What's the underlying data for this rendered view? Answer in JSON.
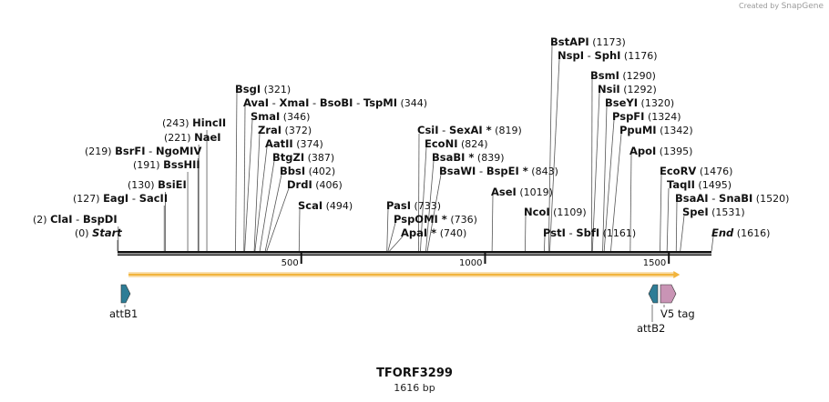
{
  "app": {
    "credit_prefix": "Created by",
    "credit_brand": "SnapGene"
  },
  "map": {
    "name": "TFORF3299",
    "length_label": "1616 bp",
    "length": 1616
  },
  "ticks": [
    {
      "value": 500,
      "label": "500"
    },
    {
      "value": 1000,
      "label": "1000"
    },
    {
      "value": 1500,
      "label": "1500"
    }
  ],
  "sites": [
    {
      "id": "start",
      "pos_value": 0,
      "names": [
        "Start"
      ],
      "pos": "(0)",
      "italic": true,
      "side": "left"
    },
    {
      "id": "clai",
      "pos_value": 2,
      "names": [
        "ClaI",
        "BspDI"
      ],
      "pos": "(2)",
      "side": "left"
    },
    {
      "id": "eagi",
      "pos_value": 127,
      "names": [
        "EagI",
        "SacII"
      ],
      "pos": "(127)",
      "side": "left"
    },
    {
      "id": "bsiei",
      "pos_value": 130,
      "names": [
        "BsiEI"
      ],
      "pos": "(130)",
      "side": "left"
    },
    {
      "id": "bsshii",
      "pos_value": 191,
      "names": [
        "BssHII"
      ],
      "pos": "(191)",
      "side": "left"
    },
    {
      "id": "bsrfi",
      "pos_value": 219,
      "names": [
        "BsrFI",
        "NgoMIV"
      ],
      "pos": "(219)",
      "side": "left"
    },
    {
      "id": "naei",
      "pos_value": 221,
      "names": [
        "NaeI"
      ],
      "pos": "(221)",
      "side": "left"
    },
    {
      "id": "hincii",
      "pos_value": 243,
      "names": [
        "HincII"
      ],
      "pos": "(243)",
      "side": "left"
    },
    {
      "id": "bsgi",
      "pos_value": 321,
      "names": [
        "BsgI"
      ],
      "pos": "(321)",
      "side": "right"
    },
    {
      "id": "avai",
      "pos_value": 344,
      "names": [
        "AvaI",
        "XmaI",
        "BsoBI",
        "TspMI"
      ],
      "pos": "(344)",
      "side": "right"
    },
    {
      "id": "smai",
      "pos_value": 346,
      "names": [
        "SmaI"
      ],
      "pos": "(346)",
      "side": "right"
    },
    {
      "id": "zrai",
      "pos_value": 372,
      "names": [
        "ZraI"
      ],
      "pos": "(372)",
      "side": "right"
    },
    {
      "id": "aatii",
      "pos_value": 374,
      "names": [
        "AatII"
      ],
      "pos": "(374)",
      "side": "right"
    },
    {
      "id": "btgzi",
      "pos_value": 387,
      "names": [
        "BtgZI"
      ],
      "pos": "(387)",
      "side": "right"
    },
    {
      "id": "bbsi",
      "pos_value": 402,
      "names": [
        "BbsI"
      ],
      "pos": "(402)",
      "side": "right"
    },
    {
      "id": "drdi",
      "pos_value": 406,
      "names": [
        "DrdI"
      ],
      "pos": "(406)",
      "side": "right"
    },
    {
      "id": "scai",
      "pos_value": 494,
      "names": [
        "ScaI"
      ],
      "pos": "(494)",
      "side": "right"
    },
    {
      "id": "pasi",
      "pos_value": 733,
      "names": [
        "PasI"
      ],
      "pos": "(733)",
      "side": "right"
    },
    {
      "id": "pspomi",
      "pos_value": 736,
      "names": [
        "PspOMI *"
      ],
      "pos": "(736)",
      "side": "right"
    },
    {
      "id": "apai",
      "pos_value": 740,
      "names": [
        "ApaI *"
      ],
      "pos": "(740)",
      "side": "right"
    },
    {
      "id": "csii",
      "pos_value": 819,
      "names": [
        "CsiI",
        "SexAI *"
      ],
      "pos": "(819)",
      "side": "right"
    },
    {
      "id": "econi",
      "pos_value": 824,
      "names": [
        "EcoNI"
      ],
      "pos": "(824)",
      "side": "right"
    },
    {
      "id": "bsabi",
      "pos_value": 839,
      "names": [
        "BsaBI *"
      ],
      "pos": "(839)",
      "side": "right"
    },
    {
      "id": "bsawi",
      "pos_value": 843,
      "names": [
        "BsaWI",
        "BspEI *"
      ],
      "pos": "(843)",
      "side": "right"
    },
    {
      "id": "asei",
      "pos_value": 1019,
      "names": [
        "AseI"
      ],
      "pos": "(1019)",
      "side": "right"
    },
    {
      "id": "ncoi",
      "pos_value": 1109,
      "names": [
        "NcoI"
      ],
      "pos": "(1109)",
      "side": "right"
    },
    {
      "id": "psti",
      "pos_value": 1161,
      "names": [
        "PstI",
        "SbfI"
      ],
      "pos": "(1161)",
      "side": "right"
    },
    {
      "id": "bstapi",
      "pos_value": 1173,
      "names": [
        "BstAPI"
      ],
      "pos": "(1173)",
      "side": "right"
    },
    {
      "id": "nspi",
      "pos_value": 1176,
      "names": [
        "NspI",
        "SphI"
      ],
      "pos": "(1176)",
      "side": "right"
    },
    {
      "id": "bsmi",
      "pos_value": 1290,
      "names": [
        "BsmI"
      ],
      "pos": "(1290)",
      "side": "right"
    },
    {
      "id": "nsii",
      "pos_value": 1292,
      "names": [
        "NsiI"
      ],
      "pos": "(1292)",
      "side": "right"
    },
    {
      "id": "bseyi",
      "pos_value": 1320,
      "names": [
        "BseYI"
      ],
      "pos": "(1320)",
      "side": "right"
    },
    {
      "id": "pspfi",
      "pos_value": 1324,
      "names": [
        "PspFI"
      ],
      "pos": "(1324)",
      "side": "right"
    },
    {
      "id": "ppumi",
      "pos_value": 1342,
      "names": [
        "PpuMI"
      ],
      "pos": "(1342)",
      "side": "right"
    },
    {
      "id": "apoi",
      "pos_value": 1395,
      "names": [
        "ApoI"
      ],
      "pos": "(1395)",
      "side": "right"
    },
    {
      "id": "ecorv",
      "pos_value": 1476,
      "names": [
        "EcoRV"
      ],
      "pos": "(1476)",
      "side": "right"
    },
    {
      "id": "taqii",
      "pos_value": 1495,
      "names": [
        "TaqII"
      ],
      "pos": "(1495)",
      "side": "right"
    },
    {
      "id": "bsaai",
      "pos_value": 1520,
      "names": [
        "BsaAI",
        "SnaBI"
      ],
      "pos": "(1520)",
      "side": "right"
    },
    {
      "id": "spei",
      "pos_value": 1531,
      "names": [
        "SpeI"
      ],
      "pos": "(1531)",
      "side": "right"
    },
    {
      "id": "end",
      "pos_value": 1616,
      "names": [
        "End"
      ],
      "pos": "(1616)",
      "italic": true,
      "side": "right"
    }
  ],
  "features": [
    {
      "id": "attb1",
      "name": "attB1",
      "start": 0,
      "end": 25,
      "color": "#2e7d96",
      "direction": "forward"
    },
    {
      "id": "attb2",
      "name": "attB2",
      "start": 1460,
      "end": 1485,
      "color": "#2e7d96",
      "direction": "reverse"
    },
    {
      "id": "v5tag",
      "name": "V5 tag",
      "start": 1487,
      "end": 1530,
      "color": "#c994b5",
      "direction": "forward"
    }
  ],
  "orf": {
    "start": 30,
    "end": 1530,
    "color": "#f2b43c"
  },
  "colors": {
    "backbone": "#111111",
    "line": "#555555"
  }
}
